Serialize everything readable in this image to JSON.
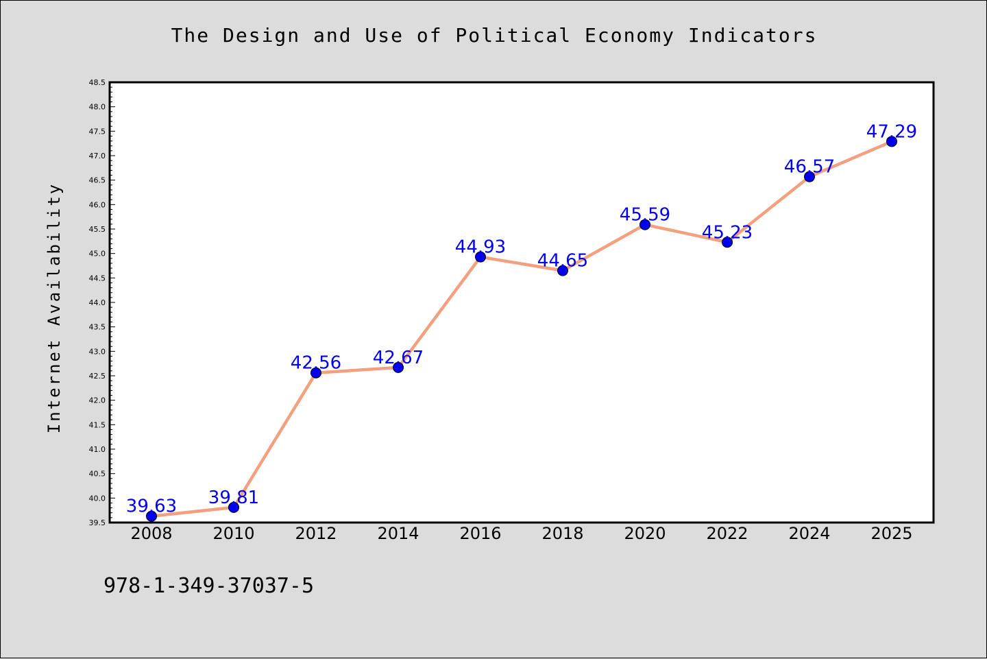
{
  "chart_data": {
    "type": "line",
    "title": "The Design and Use of Political Economy Indicators",
    "xlabel": "",
    "ylabel": "Internet Availability",
    "categories": [
      "2008",
      "2010",
      "2012",
      "2014",
      "2016",
      "2018",
      "2020",
      "2022",
      "2024",
      "2025"
    ],
    "series": [
      {
        "values": [
          39.63,
          39.81,
          42.56,
          42.67,
          44.93,
          44.65,
          45.59,
          45.23,
          46.57,
          47.29
        ],
        "data_labels": [
          "39.63",
          "39.81",
          "42.56",
          "42.67",
          "44.93",
          "44.65",
          "45.59",
          "45.23",
          "46.57",
          "47.29"
        ]
      }
    ],
    "ylim": [
      39.5,
      48.5
    ],
    "yticks": [
      "39.5",
      "40.0",
      "40.5",
      "41.0",
      "41.5",
      "42.0",
      "42.5",
      "43.0",
      "43.5",
      "44.0",
      "44.5",
      "45.0",
      "45.5",
      "46.0",
      "46.5",
      "47.0",
      "47.5",
      "48.0",
      "48.5"
    ],
    "grid": false,
    "legend": "none",
    "colors": {
      "line": "#f4a07e",
      "marker": "#0000ee",
      "data_label": "#0000ff",
      "background": "#dcdcdc",
      "plot_background": "#ffffff"
    }
  },
  "footer": {
    "isbn": "978-1-349-37037-5"
  }
}
